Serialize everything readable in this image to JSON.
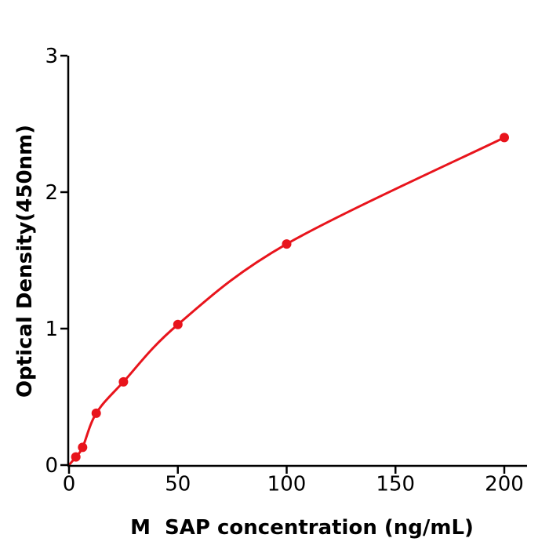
{
  "figure": {
    "background": "#ffffff"
  },
  "chart_data": {
    "type": "scatter",
    "title": "",
    "xlabel": "M  SAP concentration (ng/mL)",
    "ylabel": "Optical Density(450nm)",
    "x": [
      3.125,
      6.25,
      12.5,
      25,
      50,
      100,
      200
    ],
    "y": [
      0.06,
      0.13,
      0.38,
      0.61,
      1.03,
      1.62,
      2.4
    ],
    "curve_start": {
      "x": 0,
      "y": 0
    },
    "x_ticks": [
      0,
      50,
      100,
      150,
      200
    ],
    "y_ticks": [
      0,
      1,
      2,
      3
    ],
    "xlim": [
      0,
      210
    ],
    "ylim": [
      0,
      3
    ],
    "grid": false,
    "legend_position": "none",
    "colors": {
      "line": "#e8141c",
      "marker": "#e8141c",
      "axis": "#000000",
      "text": "#000000"
    }
  }
}
